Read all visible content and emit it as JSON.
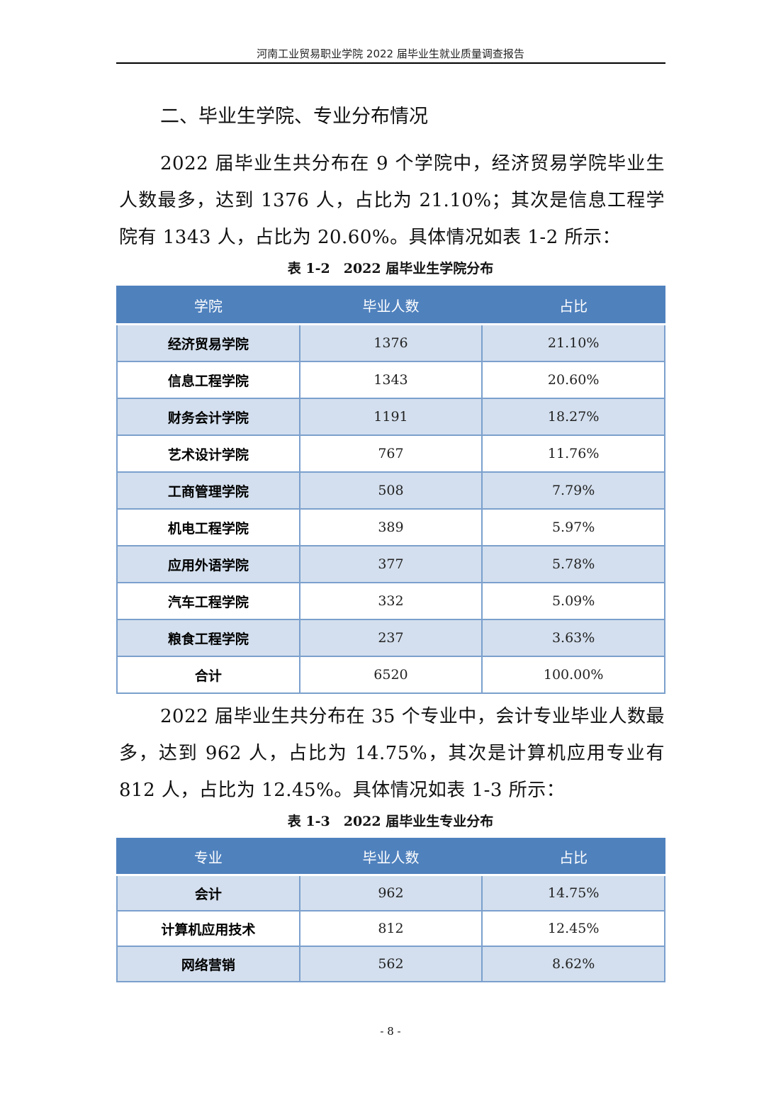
{
  "header": "河南工业贸易职业学院 2022 届毕业生就业质量调查报告",
  "section_title": "二、毕业生学院、专业分布情况",
  "para1": "2022 届毕业生共分布在 9 个学院中，经济贸易学院毕业生人数最多，达到 1376 人，占比为 21.10%；其次是信息工程学院有 1343 人，占比为 20.60%。具体情况如表 1-2 所示：",
  "table1": {
    "caption": "表 1-2　2022 届毕业生学院分布",
    "headers": [
      "学院",
      "毕业人数",
      "占比"
    ],
    "rows": [
      [
        "经济贸易学院",
        "1376",
        "21.10%"
      ],
      [
        "信息工程学院",
        "1343",
        "20.60%"
      ],
      [
        "财务会计学院",
        "1191",
        "18.27%"
      ],
      [
        "艺术设计学院",
        "767",
        "11.76%"
      ],
      [
        "工商管理学院",
        "508",
        "7.79%"
      ],
      [
        "机电工程学院",
        "389",
        "5.97%"
      ],
      [
        "应用外语学院",
        "377",
        "5.78%"
      ],
      [
        "汽车工程学院",
        "332",
        "5.09%"
      ],
      [
        "粮食工程学院",
        "237",
        "3.63%"
      ],
      [
        "合计",
        "6520",
        "100.00%"
      ]
    ]
  },
  "para2": "2022 届毕业生共分布在 35 个专业中，会计专业毕业人数最多，达到 962 人，占比为 14.75%，其次是计算机应用专业有 812 人，占比为 12.45%。具体情况如表 1-3 所示：",
  "table2": {
    "caption": "表 1-3　2022 届毕业生专业分布",
    "headers": [
      "专业",
      "毕业人数",
      "占比"
    ],
    "rows": [
      [
        "会计",
        "962",
        "14.75%"
      ],
      [
        "计算机应用技术",
        "812",
        "12.45%"
      ],
      [
        "网络营销",
        "562",
        "8.62%"
      ]
    ]
  },
  "page_number": "- 8 -",
  "colors": {
    "table_header": "#4F81BD",
    "band": "#D3DFEE",
    "border": "#7BA0CD"
  }
}
